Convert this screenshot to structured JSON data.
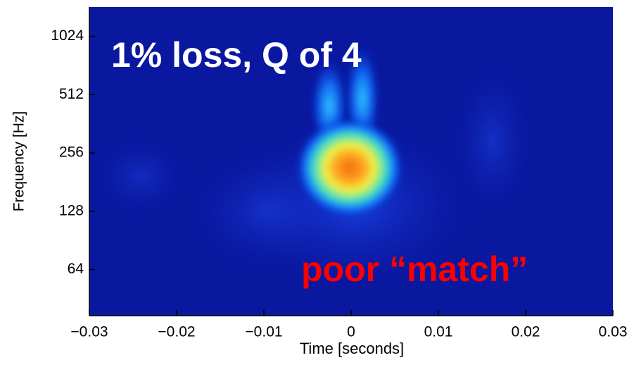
{
  "chart_data": {
    "type": "spectrogram",
    "x_label": "Time [seconds]",
    "y_label": "Frequency [Hz]",
    "annotations": [
      "1% loss, Q of 4",
      "poor “match”"
    ],
    "xlim": [
      -0.03,
      0.03
    ],
    "xticks": [
      {
        "value": -0.03,
        "label": "−0.03"
      },
      {
        "value": -0.02,
        "label": "−0.02"
      },
      {
        "value": -0.01,
        "label": "−0.01"
      },
      0,
      0.01,
      0.02,
      0.03
    ],
    "ylim": [
      37,
      1450
    ],
    "yscale": "log",
    "yticks": [
      64,
      128,
      256,
      512,
      1024
    ]
  }
}
